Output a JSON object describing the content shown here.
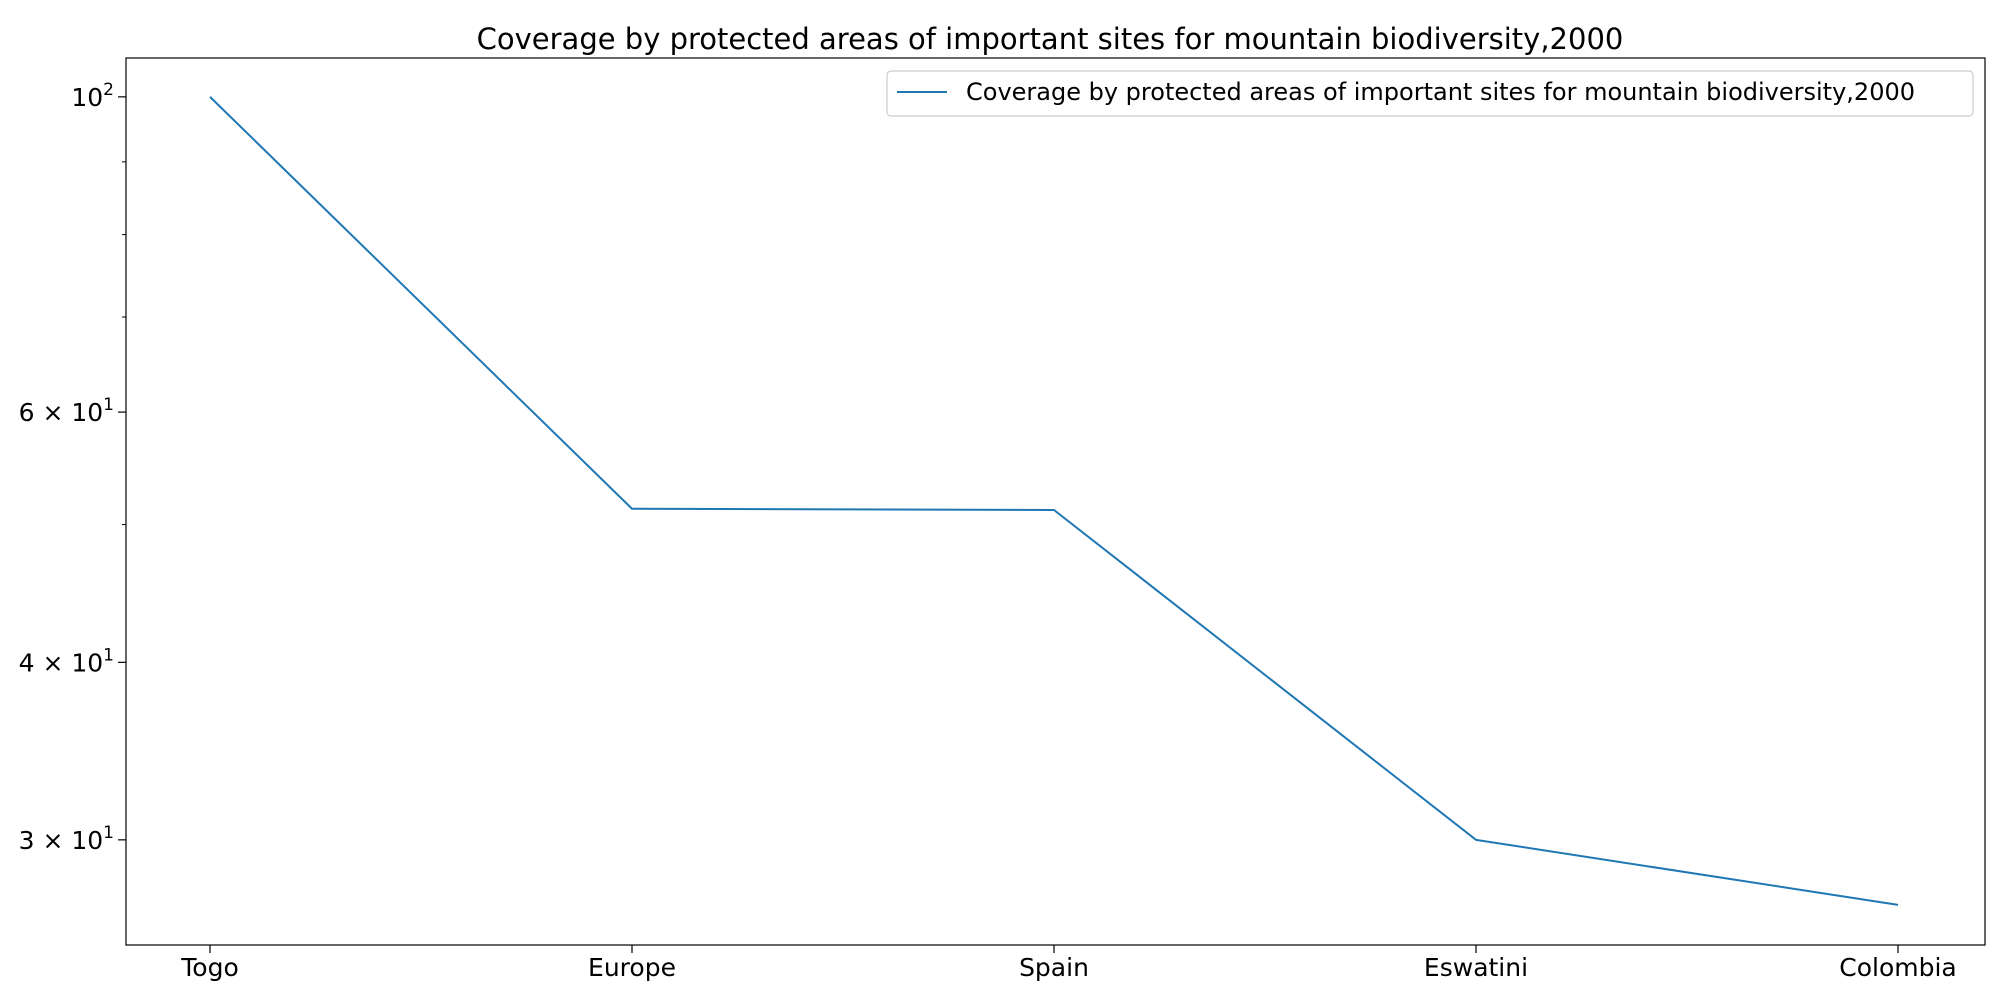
{
  "chart_data": {
    "type": "line",
    "title": "Coverage by protected areas of important sites for mountain biodiversity,2000",
    "xlabel": "",
    "ylabel": "",
    "categories": [
      "Togo",
      "Europe",
      "Spain",
      "Eswatini",
      "Colombia"
    ],
    "series": [
      {
        "name": "Coverage by protected areas of important sites for mountain biodiversity,2000",
        "values": [
          100.0,
          51.3,
          51.2,
          30.0,
          27.0
        ],
        "color": "#1f77b4"
      }
    ],
    "y_scale": "log",
    "ylim": [
      25.3,
      106.5
    ],
    "y_major_ticks": [
      {
        "value": 100,
        "base": "10",
        "exp": "2"
      },
      {
        "value": 60,
        "base": "6 × 10",
        "exp": "1"
      },
      {
        "value": 40,
        "base": "4 × 10",
        "exp": "1"
      },
      {
        "value": 30,
        "base": "3 × 10",
        "exp": "1"
      }
    ],
    "y_minor_ticks": [
      90,
      80,
      70,
      50
    ],
    "grid": false,
    "legend_position": "top-right"
  }
}
